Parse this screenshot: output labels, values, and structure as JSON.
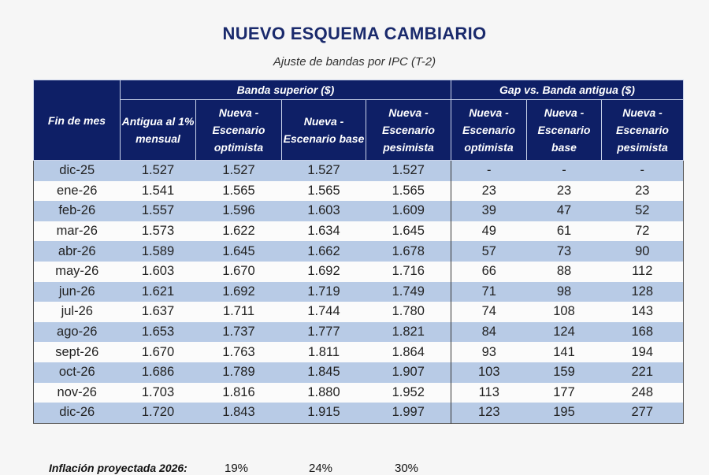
{
  "title": "NUEVO ESQUEMA CAMBIARIO",
  "subtitle": "Ajuste de bandas por IPC (T-2)",
  "table": {
    "row_header": "Fin de mes",
    "groups": [
      "Banda superior ($)",
      "Gap vs. Banda antigua ($)"
    ],
    "columns": [
      "Antigua al 1% mensual",
      "Nueva - Escenario optimista",
      "Nueva - Escenario base",
      "Nueva - Escenario pesimista",
      "Nueva - Escenario optimista",
      "Nueva - Escenario base",
      "Nueva - Escenario pesimista"
    ],
    "rows": [
      {
        "month": "dic-25",
        "values": [
          "1.527",
          "1.527",
          "1.527",
          "1.527",
          "-",
          "-",
          "-"
        ]
      },
      {
        "month": "ene-26",
        "values": [
          "1.541",
          "1.565",
          "1.565",
          "1.565",
          "23",
          "23",
          "23"
        ]
      },
      {
        "month": "feb-26",
        "values": [
          "1.557",
          "1.596",
          "1.603",
          "1.609",
          "39",
          "47",
          "52"
        ]
      },
      {
        "month": "mar-26",
        "values": [
          "1.573",
          "1.622",
          "1.634",
          "1.645",
          "49",
          "61",
          "72"
        ]
      },
      {
        "month": "abr-26",
        "values": [
          "1.589",
          "1.645",
          "1.662",
          "1.678",
          "57",
          "73",
          "90"
        ]
      },
      {
        "month": "may-26",
        "values": [
          "1.603",
          "1.670",
          "1.692",
          "1.716",
          "66",
          "88",
          "112"
        ]
      },
      {
        "month": "jun-26",
        "values": [
          "1.621",
          "1.692",
          "1.719",
          "1.749",
          "71",
          "98",
          "128"
        ]
      },
      {
        "month": "jul-26",
        "values": [
          "1.637",
          "1.711",
          "1.744",
          "1.780",
          "74",
          "108",
          "143"
        ]
      },
      {
        "month": "ago-26",
        "values": [
          "1.653",
          "1.737",
          "1.777",
          "1.821",
          "84",
          "124",
          "168"
        ]
      },
      {
        "month": "sept-26",
        "values": [
          "1.670",
          "1.763",
          "1.811",
          "1.864",
          "93",
          "141",
          "194"
        ]
      },
      {
        "month": "oct-26",
        "values": [
          "1.686",
          "1.789",
          "1.845",
          "1.907",
          "103",
          "159",
          "221"
        ]
      },
      {
        "month": "nov-26",
        "values": [
          "1.703",
          "1.816",
          "1.880",
          "1.952",
          "113",
          "177",
          "248"
        ]
      },
      {
        "month": "dic-26",
        "values": [
          "1.720",
          "1.843",
          "1.915",
          "1.997",
          "123",
          "195",
          "277"
        ]
      }
    ]
  },
  "footer": {
    "label": "Inflación proyectada 2026:",
    "values": [
      "19%",
      "24%",
      "30%"
    ]
  },
  "colors": {
    "header_bg": "#0e1f66",
    "title": "#1a2a6c",
    "band_row": "#b8cbe6"
  }
}
